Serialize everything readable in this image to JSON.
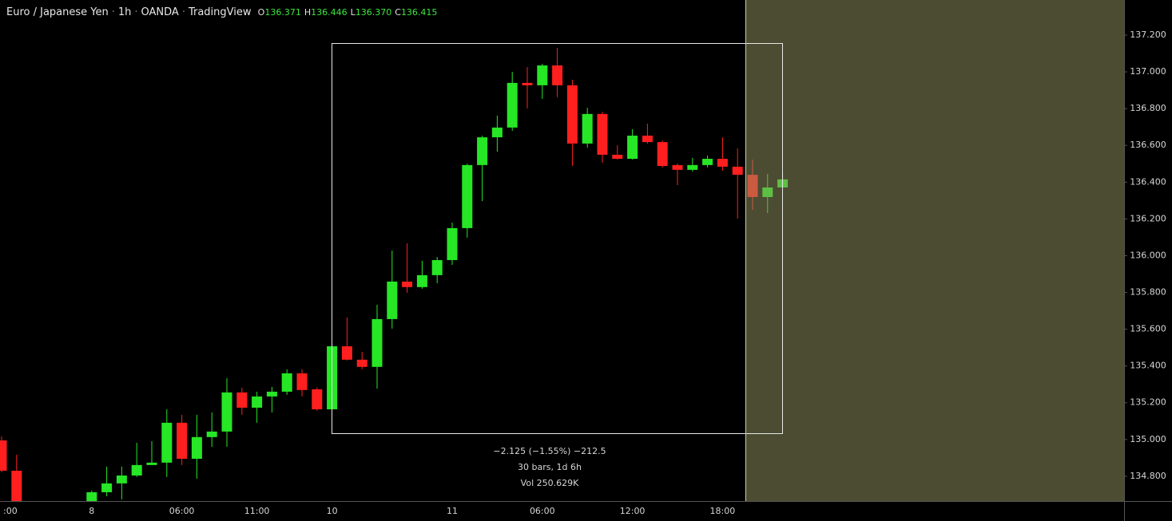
{
  "header": {
    "symbol": "Euro / Japanese Yen",
    "separator": "·",
    "interval": "1h",
    "exchange": "OANDA",
    "platform": "TradingView",
    "ohlc": [
      {
        "label": "O",
        "value": "136.371"
      },
      {
        "label": "H",
        "value": "136.446"
      },
      {
        "label": "L",
        "value": "136.370"
      },
      {
        "label": "C",
        "value": "136.415"
      }
    ]
  },
  "chart_data": {
    "type": "candlestick",
    "categories": [
      ":00",
      null,
      null,
      null,
      null,
      null,
      "8",
      null,
      null,
      null,
      null,
      null,
      "06:00",
      null,
      null,
      null,
      null,
      "11:00",
      null,
      null,
      null,
      null,
      "10",
      null,
      null,
      null,
      null,
      null,
      null,
      null,
      "11",
      null,
      null,
      null,
      null,
      null,
      "06:00",
      null,
      null,
      null,
      null,
      null,
      "12:00",
      null,
      null,
      null,
      null,
      null,
      "18:00",
      null,
      null,
      null,
      null
    ],
    "open": [
      134.995,
      134.83,
      null,
      null,
      null,
      null,
      134.65,
      134.713,
      134.761,
      134.804,
      134.861,
      134.874,
      135.091,
      134.895,
      135.013,
      135.043,
      135.256,
      135.173,
      135.234,
      135.26,
      135.36,
      135.273,
      135.164,
      135.507,
      135.434,
      135.395,
      135.655,
      135.859,
      135.829,
      135.894,
      135.976,
      136.15,
      136.493,
      136.644,
      136.697,
      136.94,
      136.927,
      137.035,
      136.927,
      136.61,
      136.771,
      136.549,
      136.527,
      136.653,
      136.618,
      136.493,
      136.467,
      136.493,
      136.527,
      136.484,
      136.44,
      136.319,
      136.371
    ],
    "high": [
      135.017,
      134.917,
      null,
      null,
      null,
      null,
      134.722,
      134.852,
      134.852,
      134.982,
      134.991,
      135.164,
      135.134,
      135.134,
      135.147,
      135.334,
      135.282,
      135.26,
      135.286,
      135.382,
      135.382,
      135.282,
      135.516,
      135.664,
      135.477,
      135.733,
      136.028,
      136.067,
      135.972,
      135.993,
      136.18,
      136.501,
      136.653,
      136.762,
      137.0,
      137.026,
      137.044,
      137.131,
      136.957,
      136.805,
      136.783,
      136.601,
      136.688,
      136.718,
      136.627,
      136.501,
      136.532,
      136.545,
      136.644,
      136.584,
      136.523,
      136.445,
      136.446
    ],
    "low": [
      134.822,
      134.64,
      null,
      null,
      null,
      null,
      134.63,
      134.691,
      134.674,
      134.796,
      134.861,
      134.796,
      134.861,
      134.787,
      134.96,
      134.96,
      135.134,
      135.091,
      135.147,
      135.243,
      135.234,
      135.156,
      135.164,
      135.43,
      135.382,
      135.277,
      135.603,
      135.798,
      135.82,
      135.85,
      135.95,
      136.098,
      136.297,
      136.566,
      136.679,
      136.801,
      136.853,
      136.862,
      136.488,
      136.588,
      136.506,
      136.523,
      136.523,
      136.61,
      136.48,
      136.384,
      136.458,
      136.48,
      136.462,
      136.202,
      136.249,
      136.232,
      136.37
    ],
    "close": [
      134.83,
      134.66,
      null,
      null,
      null,
      null,
      134.713,
      134.761,
      134.804,
      134.861,
      134.874,
      135.091,
      134.895,
      135.013,
      135.043,
      135.256,
      135.173,
      135.234,
      135.26,
      135.36,
      135.269,
      135.164,
      135.507,
      135.434,
      135.395,
      135.655,
      135.859,
      135.829,
      135.894,
      135.976,
      136.15,
      136.493,
      136.644,
      136.697,
      136.94,
      136.927,
      137.035,
      136.927,
      136.61,
      136.771,
      136.549,
      136.527,
      136.653,
      136.618,
      136.488,
      136.467,
      136.493,
      136.527,
      136.484,
      136.44,
      136.319,
      136.371,
      136.415
    ],
    "up_color": "#26e626",
    "down_color": "#ff1f1f",
    "ylim": [
      134.665,
      137.391
    ],
    "yticks": [
      {
        "value": 134.8,
        "label": "134.800"
      },
      {
        "value": 135.0,
        "label": "135.000"
      },
      {
        "value": 135.2,
        "label": "135.200"
      },
      {
        "value": 135.4,
        "label": "135.400"
      },
      {
        "value": 135.6,
        "label": "135.600"
      },
      {
        "value": 135.8,
        "label": "135.800"
      },
      {
        "value": 136.0,
        "label": "136.000"
      },
      {
        "value": 136.2,
        "label": "136.200"
      },
      {
        "value": 136.4,
        "label": "136.400"
      },
      {
        "value": 136.6,
        "label": "136.600"
      },
      {
        "value": 136.8,
        "label": "136.800"
      },
      {
        "value": 137.0,
        "label": "137.000"
      },
      {
        "value": 137.2,
        "label": "137.200"
      }
    ],
    "annotations": [
      "−2.125 (−1.55%) −212.5",
      "30 bars, 1d 6h",
      "Vol 250.629K"
    ]
  }
}
